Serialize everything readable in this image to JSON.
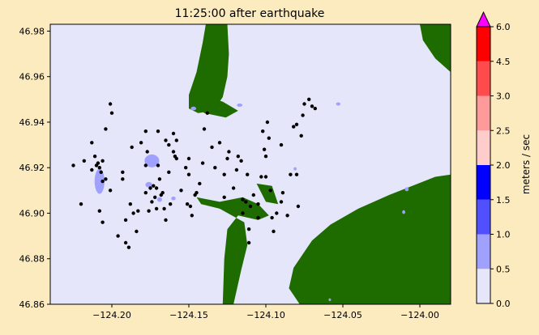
{
  "figure": {
    "background": "#fdebc0"
  },
  "chart_data": {
    "type": "heatmap",
    "title": "11:25:00 after earthquake",
    "xlabel": "",
    "ylabel": "",
    "xlim": [
      -124.24,
      -123.98
    ],
    "ylim": [
      46.86,
      46.983
    ],
    "x_ticks": [
      {
        "value": -124.2,
        "label": "−124.20"
      },
      {
        "value": -124.15,
        "label": "−124.15"
      },
      {
        "value": -124.1,
        "label": "−124.10"
      },
      {
        "value": -124.05,
        "label": "−124.05"
      },
      {
        "value": -124.0,
        "label": "−124.00"
      }
    ],
    "y_ticks": [
      {
        "value": 46.86,
        "label": "46.86"
      },
      {
        "value": 46.88,
        "label": "46.88"
      },
      {
        "value": 46.9,
        "label": "46.90"
      },
      {
        "value": 46.92,
        "label": "46.92"
      },
      {
        "value": 46.94,
        "label": "46.94"
      },
      {
        "value": 46.96,
        "label": "46.96"
      },
      {
        "value": 46.98,
        "label": "46.98"
      }
    ],
    "grid": false,
    "colorbar": {
      "label": "meters / sec",
      "extend": "max",
      "over_color": "#ff00ff",
      "levels": [
        {
          "from": 0.0,
          "to": 0.5,
          "color": "#e6e6fa"
        },
        {
          "from": 0.5,
          "to": 1.0,
          "color": "#a0a0ff"
        },
        {
          "from": 1.0,
          "to": 1.5,
          "color": "#5050ff"
        },
        {
          "from": 1.5,
          "to": 2.0,
          "color": "#0000ff"
        },
        {
          "from": 2.0,
          "to": 2.5,
          "color": "#ffcccc"
        },
        {
          "from": 2.5,
          "to": 3.0,
          "color": "#ff9a9a"
        },
        {
          "from": 3.0,
          "to": 4.5,
          "color": "#ff4b4b"
        },
        {
          "from": 4.5,
          "to": 6.0,
          "color": "#ff0000"
        }
      ],
      "ticks": [
        {
          "value": 0.0,
          "label": "0.0"
        },
        {
          "value": 0.5,
          "label": "0.5"
        },
        {
          "value": 1.0,
          "label": "1.0"
        },
        {
          "value": 1.5,
          "label": "1.5"
        },
        {
          "value": 2.0,
          "label": "2.0"
        },
        {
          "value": 2.5,
          "label": "2.5"
        },
        {
          "value": 3.0,
          "label": "3.0"
        },
        {
          "value": 4.5,
          "label": "4.5"
        },
        {
          "value": 6.0,
          "label": "6.0"
        }
      ]
    },
    "colors": {
      "water": "#e6e6fa",
      "land": "#1e6b00",
      "land_light": "#2d8a0f",
      "debris": "#000000"
    },
    "land_regions": [
      {
        "name": "north-spit",
        "points": [
          [
            -124.139,
            46.983
          ],
          [
            -124.125,
            46.983
          ],
          [
            -124.124,
            46.97
          ],
          [
            -124.125,
            46.96
          ],
          [
            -124.128,
            46.951
          ],
          [
            -124.134,
            46.945
          ],
          [
            -124.144,
            46.944
          ],
          [
            -124.15,
            46.946
          ],
          [
            -124.15,
            46.952
          ],
          [
            -124.145,
            46.962
          ],
          [
            -124.141,
            46.975
          ]
        ]
      },
      {
        "name": "north-spit-tip",
        "points": [
          [
            -124.15,
            46.951
          ],
          [
            -124.14,
            46.944
          ],
          [
            -124.126,
            46.942
          ],
          [
            -124.118,
            46.945
          ],
          [
            -124.128,
            46.949
          ],
          [
            -124.143,
            46.952
          ]
        ]
      },
      {
        "name": "central-shoal",
        "points": [
          [
            -124.145,
            46.907
          ],
          [
            -124.13,
            46.905
          ],
          [
            -124.115,
            46.907
          ],
          [
            -124.105,
            46.904
          ],
          [
            -124.098,
            46.899
          ],
          [
            -124.105,
            46.897
          ],
          [
            -124.118,
            46.899
          ],
          [
            -124.125,
            46.893
          ],
          [
            -124.127,
            46.88
          ],
          [
            -124.128,
            46.86
          ],
          [
            -124.121,
            46.86
          ],
          [
            -124.116,
            46.875
          ],
          [
            -124.112,
            46.886
          ],
          [
            -124.114,
            46.896
          ],
          [
            -124.13,
            46.902
          ],
          [
            -124.142,
            46.904
          ]
        ]
      },
      {
        "name": "east-shore",
        "points": [
          [
            -124.078,
            46.86
          ],
          [
            -124.085,
            46.867
          ],
          [
            -124.082,
            46.876
          ],
          [
            -124.07,
            46.888
          ],
          [
            -124.058,
            46.895
          ],
          [
            -124.04,
            46.902
          ],
          [
            -124.02,
            46.908
          ],
          [
            -124.005,
            46.912
          ],
          [
            -123.99,
            46.916
          ],
          [
            -123.98,
            46.917
          ],
          [
            -123.98,
            46.86
          ]
        ]
      },
      {
        "name": "east-north-corner",
        "points": [
          [
            -124.0,
            46.983
          ],
          [
            -123.98,
            46.983
          ],
          [
            -123.98,
            46.962
          ],
          [
            -123.99,
            46.968
          ],
          [
            -123.998,
            46.976
          ]
        ]
      },
      {
        "name": "central-strip",
        "points": [
          [
            -124.106,
            46.913
          ],
          [
            -124.096,
            46.912
          ],
          [
            -124.092,
            46.904
          ],
          [
            -124.1,
            46.905
          ]
        ]
      }
    ],
    "speed_patches": [
      {
        "level": 0.5,
        "color": "#a0a0ff",
        "cx": -124.208,
        "cy": 46.914,
        "rx": 0.0032,
        "ry": 0.0055
      },
      {
        "level": 0.5,
        "color": "#a0a0ff",
        "cx": -124.174,
        "cy": 46.923,
        "rx": 0.0048,
        "ry": 0.0028
      },
      {
        "level": 0.5,
        "color": "#a0a0ff",
        "cx": -124.176,
        "cy": 46.9125,
        "rx": 0.0022,
        "ry": 0.0012
      },
      {
        "level": 0.5,
        "color": "#a0a0ff",
        "cx": -124.169,
        "cy": 46.906,
        "rx": 0.0016,
        "ry": 0.001
      },
      {
        "level": 0.5,
        "color": "#a0a0ff",
        "cx": -124.16,
        "cy": 46.9065,
        "rx": 0.0014,
        "ry": 0.0008
      },
      {
        "level": 0.5,
        "color": "#a0a0ff",
        "cx": -124.147,
        "cy": 46.946,
        "rx": 0.0018,
        "ry": 0.0008
      },
      {
        "level": 0.5,
        "color": "#a0a0ff",
        "cx": -124.117,
        "cy": 46.9475,
        "rx": 0.0018,
        "ry": 0.0007
      },
      {
        "level": 0.5,
        "color": "#a0a0ff",
        "cx": -124.053,
        "cy": 46.948,
        "rx": 0.0014,
        "ry": 0.0007
      },
      {
        "level": 0.5,
        "color": "#a0a0ff",
        "cx": -124.081,
        "cy": 46.9195,
        "rx": 0.001,
        "ry": 0.0007
      },
      {
        "level": 0.5,
        "color": "#a0a0ff",
        "cx": -124.0085,
        "cy": 46.9105,
        "rx": 0.0012,
        "ry": 0.0009
      },
      {
        "level": 0.5,
        "color": "#a0a0ff",
        "cx": -124.0105,
        "cy": 46.9005,
        "rx": 0.001,
        "ry": 0.0008
      },
      {
        "level": 0.5,
        "color": "#a0a0ff",
        "cx": -124.0585,
        "cy": 46.862,
        "rx": 0.0008,
        "ry": 0.0006
      }
    ],
    "debris_points": [
      [
        -124.225,
        46.921
      ],
      [
        -124.218,
        46.923
      ],
      [
        -124.22,
        46.904
      ],
      [
        -124.213,
        46.919
      ],
      [
        -124.213,
        46.931
      ],
      [
        -124.211,
        46.925
      ],
      [
        -124.21,
        46.921
      ],
      [
        -124.209,
        46.922
      ],
      [
        -124.208,
        46.92
      ],
      [
        -124.207,
        46.918
      ],
      [
        -124.206,
        46.923
      ],
      [
        -124.206,
        46.914
      ],
      [
        -124.204,
        46.915
      ],
      [
        -124.208,
        46.901
      ],
      [
        -124.206,
        46.896
      ],
      [
        -124.204,
        46.937
      ],
      [
        -124.201,
        46.948
      ],
      [
        -124.2,
        46.944
      ],
      [
        -124.201,
        46.91
      ],
      [
        -124.196,
        46.89
      ],
      [
        -124.193,
        46.918
      ],
      [
        -124.193,
        46.915
      ],
      [
        -124.191,
        46.897
      ],
      [
        -124.191,
        46.887
      ],
      [
        -124.189,
        46.885
      ],
      [
        -124.188,
        46.904
      ],
      [
        -124.187,
        46.929
      ],
      [
        -124.186,
        46.9
      ],
      [
        -124.184,
        46.892
      ],
      [
        -124.183,
        46.901
      ],
      [
        -124.181,
        46.931
      ],
      [
        -124.178,
        46.936
      ],
      [
        -124.178,
        46.921
      ],
      [
        -124.178,
        46.909
      ],
      [
        -124.177,
        46.927
      ],
      [
        -124.176,
        46.901
      ],
      [
        -124.175,
        46.911
      ],
      [
        -124.174,
        46.905
      ],
      [
        -124.173,
        46.912
      ],
      [
        -124.172,
        46.907
      ],
      [
        -124.171,
        46.902
      ],
      [
        -124.171,
        46.911
      ],
      [
        -124.17,
        46.936
      ],
      [
        -124.17,
        46.921
      ],
      [
        -124.169,
        46.915
      ],
      [
        -124.168,
        46.908
      ],
      [
        -124.167,
        46.909
      ],
      [
        -124.166,
        46.902
      ],
      [
        -124.165,
        46.932
      ],
      [
        -124.165,
        46.897
      ],
      [
        -124.163,
        46.93
      ],
      [
        -124.163,
        46.918
      ],
      [
        -124.162,
        46.904
      ],
      [
        -124.16,
        46.935
      ],
      [
        -124.16,
        46.927
      ],
      [
        -124.159,
        46.925
      ],
      [
        -124.158,
        46.924
      ],
      [
        -124.158,
        46.932
      ],
      [
        -124.155,
        46.91
      ],
      [
        -124.152,
        46.92
      ],
      [
        -124.151,
        46.904
      ],
      [
        -124.15,
        46.924
      ],
      [
        -124.15,
        46.917
      ],
      [
        -124.149,
        46.903
      ],
      [
        -124.148,
        46.899
      ],
      [
        -124.146,
        46.908
      ],
      [
        -124.145,
        46.909
      ],
      [
        -124.143,
        46.913
      ],
      [
        -124.141,
        46.922
      ],
      [
        -124.14,
        46.937
      ],
      [
        -124.138,
        46.944
      ],
      [
        -124.135,
        46.929
      ],
      [
        -124.133,
        46.92
      ],
      [
        -124.13,
        46.931
      ],
      [
        -124.127,
        46.907
      ],
      [
        -124.127,
        46.917
      ],
      [
        -124.125,
        46.924
      ],
      [
        -124.124,
        46.927
      ],
      [
        -124.121,
        46.911
      ],
      [
        -124.119,
        46.919
      ],
      [
        -124.118,
        46.925
      ],
      [
        -124.116,
        46.923
      ],
      [
        -124.115,
        46.906
      ],
      [
        -124.115,
        46.9
      ],
      [
        -124.113,
        46.905
      ],
      [
        -124.112,
        46.917
      ],
      [
        -124.111,
        46.887
      ],
      [
        -124.111,
        46.893
      ],
      [
        -124.11,
        46.903
      ],
      [
        -124.108,
        46.908
      ],
      [
        -124.105,
        46.904
      ],
      [
        -124.105,
        46.898
      ],
      [
        -124.103,
        46.916
      ],
      [
        -124.102,
        46.936
      ],
      [
        -124.101,
        46.928
      ],
      [
        -124.1,
        46.916
      ],
      [
        -124.1,
        46.925
      ],
      [
        -124.099,
        46.94
      ],
      [
        -124.098,
        46.933
      ],
      [
        -124.097,
        46.91
      ],
      [
        -124.096,
        46.898
      ],
      [
        -124.095,
        46.892
      ],
      [
        -124.093,
        46.9
      ],
      [
        -124.09,
        46.905
      ],
      [
        -124.09,
        46.93
      ],
      [
        -124.089,
        46.909
      ],
      [
        -124.086,
        46.899
      ],
      [
        -124.084,
        46.917
      ],
      [
        -124.082,
        46.938
      ],
      [
        -124.08,
        46.939
      ],
      [
        -124.08,
        46.917
      ],
      [
        -124.079,
        46.903
      ],
      [
        -124.077,
        46.934
      ],
      [
        -124.076,
        46.943
      ],
      [
        -124.075,
        46.948
      ],
      [
        -124.072,
        46.95
      ],
      [
        -124.07,
        46.947
      ],
      [
        -124.068,
        46.946
      ]
    ]
  }
}
